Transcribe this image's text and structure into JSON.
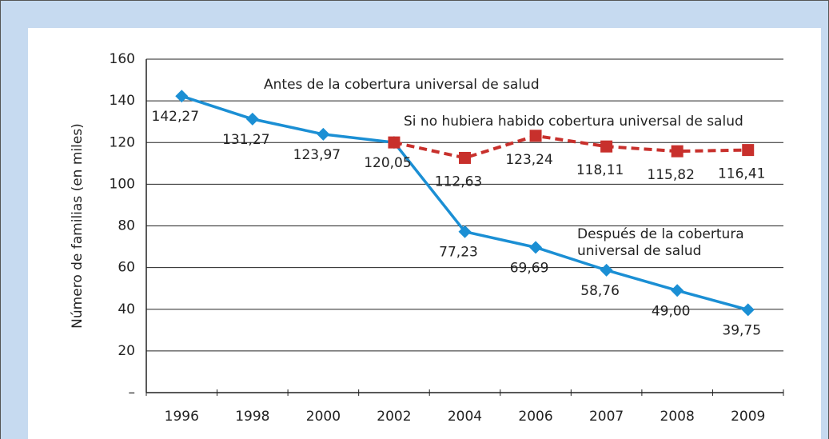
{
  "chart_data": {
    "type": "line",
    "y_label": "Número de familias (en miles)",
    "categories": [
      "1996",
      "1998",
      "2000",
      "2002",
      "2004",
      "2006",
      "2007",
      "2008",
      "2009"
    ],
    "series": [
      {
        "name": "Antes / Después de la cobertura universal de salud",
        "color": "#1b8fd4",
        "marker": "diamond",
        "dashed": false,
        "values": [
          142.27,
          131.27,
          123.97,
          120.05,
          77.23,
          69.69,
          58.76,
          49.0,
          39.75
        ],
        "value_labels": [
          "142,27",
          "131,27",
          "123,97",
          "120,05",
          "77,23",
          "69,69",
          "58,76",
          "49,00",
          "39,75"
        ]
      },
      {
        "name": "Si no hubiera habido cobertura universal de salud",
        "color": "#c8302c",
        "marker": "square",
        "dashed": true,
        "values": [
          null,
          null,
          null,
          120.05,
          112.63,
          123.24,
          118.11,
          115.82,
          116.41
        ],
        "value_labels": [
          null,
          null,
          null,
          null,
          "112,63",
          "123,24",
          "118,11",
          "115,82",
          "116,41"
        ]
      }
    ],
    "annotations": [
      {
        "lines": [
          "Antes de la cobertura universal de salud"
        ]
      },
      {
        "lines": [
          "Si no hubiera habido cobertura universal de salud"
        ]
      },
      {
        "lines": [
          "Después de la cobertura",
          "universal de salud"
        ]
      }
    ],
    "ylim": [
      0,
      160
    ],
    "yticks": [
      {
        "value": 0,
        "label": "–"
      },
      20,
      40,
      60,
      80,
      100,
      120,
      140,
      160
    ],
    "grid": true
  }
}
